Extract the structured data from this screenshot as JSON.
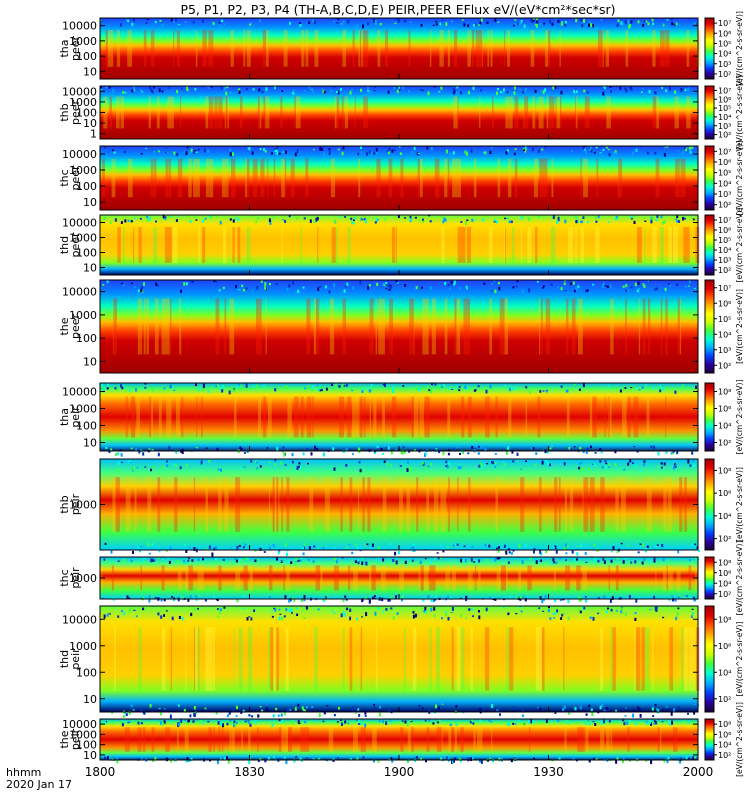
{
  "title": "P5, P1, P2, P3, P4 (TH-A,B,C,D,E) PEIR,PEER EFlux eV/(eV*cm²*sec*sr)",
  "date_label": "2020 Jan 17",
  "time_axis_label": "hhmm",
  "colorbar_label_short": "[eV/(cm^2-s-sr-eV)]",
  "colorbar_label_full": "[eV/(cm^2-s-sr-eV)]",
  "palette": [
    "#1a0033",
    "#2b00a0",
    "#0040ff",
    "#00b0ff",
    "#00ffd0",
    "#40ff40",
    "#c8ff00",
    "#ffff00",
    "#ffb000",
    "#ff5000",
    "#e00000",
    "#a00000"
  ],
  "chart_data": {
    "type": "heatmap",
    "x_range": [
      1800,
      2000
    ],
    "x_ticks": [
      "1800",
      "1830",
      "1900",
      "1930",
      "2000"
    ],
    "panels": [
      {
        "probe": "tha",
        "species": "peer",
        "ylabel": "tha\npeer",
        "yticks": [
          "10",
          "100",
          "1000",
          "10000"
        ],
        "cbar_ticks": [
          "10²",
          "10³",
          "10⁴",
          "10⁵",
          "10⁶",
          "10⁷"
        ],
        "cbar_label": "[eV/(cm^2-s-sr-eV)]"
      },
      {
        "probe": "thb",
        "species": "peer",
        "ylabel": "thb\npeer",
        "yticks": [
          "1",
          "10",
          "100",
          "1000",
          "10000"
        ],
        "cbar_ticks": [
          "10²",
          "10³",
          "10⁴",
          "10⁵",
          "10⁶",
          "10⁷"
        ],
        "cbar_label": "[eV/(cm^2-s-sr-eV)]"
      },
      {
        "probe": "thc",
        "species": "peer",
        "ylabel": "thc\npeer",
        "yticks": [
          "10",
          "100",
          "1000",
          "10000"
        ],
        "cbar_ticks": [
          "10²",
          "10³",
          "10⁴",
          "10⁵",
          "10⁶",
          "10⁷"
        ],
        "cbar_label": "[eV/(cm^2-s-sr-eV)]"
      },
      {
        "probe": "thd",
        "species": "peer",
        "ylabel": "thd\npeer",
        "yticks": [
          "10",
          "100",
          "1000",
          "10000"
        ],
        "cbar_ticks": [
          "10²",
          "10³",
          "10⁴",
          "10⁵",
          "10⁶",
          "10⁷"
        ],
        "cbar_label": "[eV/(cm^2-s-sr-eV)]"
      },
      {
        "probe": "the",
        "species": "peer",
        "ylabel": "the\npeer",
        "yticks": [
          "10",
          "100",
          "1000",
          "10000"
        ],
        "cbar_ticks": [
          "10²",
          "10³",
          "10⁴",
          "10⁵",
          "10⁶",
          "10⁷"
        ],
        "cbar_label": "[eV/(cm^2-s-sr-eV)]"
      },
      {
        "probe": "tha",
        "species": "peir",
        "ylabel": "tha\npeir",
        "yticks": [
          "10",
          "100",
          "1000",
          "10000"
        ],
        "cbar_ticks": [
          "10²",
          "10⁴",
          "10⁶",
          "10⁸"
        ],
        "cbar_label": "[eV/(cm^2-s-sr-eV)]"
      },
      {
        "probe": "thb",
        "species": "peir",
        "ylabel": "thb\npeir",
        "yticks": [
          "1000"
        ],
        "cbar_ticks": [
          "10²",
          "10⁴",
          "10⁶",
          "10⁸"
        ],
        "cbar_label": "[eV/(cm^2-s-sr-eV)]"
      },
      {
        "probe": "thc",
        "species": "peir",
        "ylabel": "thc\npeir",
        "yticks": [
          "1000"
        ],
        "cbar_ticks": [
          "10²",
          "10⁴",
          "10⁶",
          "10⁸"
        ],
        "cbar_label": "[eV/(cm^2-s-sr-eV)]"
      },
      {
        "probe": "thd",
        "species": "peir",
        "ylabel": "thd\npeir",
        "yticks": [
          "10",
          "100",
          "1000",
          "10000"
        ],
        "cbar_ticks": [
          "10²",
          "10⁴",
          "10⁶",
          "10⁸"
        ],
        "cbar_label": "[eV/(cm^2-s-sr-eV)]"
      },
      {
        "probe": "the",
        "species": "peir",
        "ylabel": "the\npeir",
        "yticks": [
          "10",
          "100",
          "1000",
          "10000"
        ],
        "cbar_ticks": [
          "10²",
          "10⁴",
          "10⁶",
          "10⁸"
        ],
        "cbar_label": "[eV/(cm^2-s-sr-eV)]"
      }
    ]
  }
}
